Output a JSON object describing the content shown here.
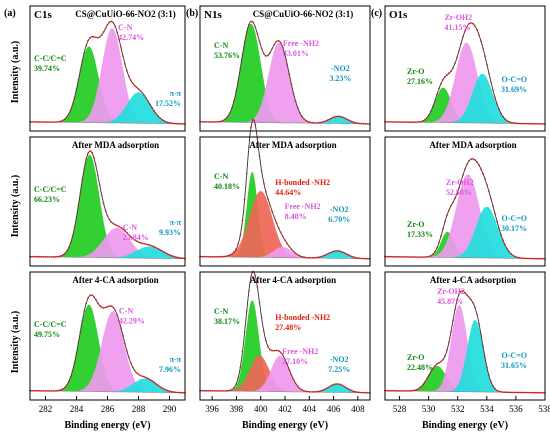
{
  "chart_data": [
    {
      "type": "area",
      "panel_letter": "(a)",
      "element": "C1s",
      "xlabel": "Binding energy (eV)",
      "xlim": [
        281,
        291
      ],
      "x_ticks": [
        "282",
        "284",
        "286",
        "288",
        "290"
      ],
      "ylabel": "Intensity (a.u.)",
      "panels": [
        {
          "title": "CS@CuUiO-66-NO2 (3:1)",
          "peaks": [
            {
              "name": "C-C/C=C",
              "percent": "39.74%",
              "center": 284.8,
              "height": 0.74,
              "width": 0.62,
              "color": "#22cc22"
            },
            {
              "name": "C-N",
              "percent": "42.74%",
              "center": 286.3,
              "height": 0.92,
              "width": 0.66,
              "color": "#ee99ee"
            },
            {
              "name": "π-π",
              "percent": "17.52%",
              "center": 288.0,
              "height": 0.3,
              "width": 0.75,
              "color": "#22dddd"
            }
          ]
        },
        {
          "title": "After MDA adsorption",
          "peaks": [
            {
              "name": "C-C/C=C",
              "percent": "66.23%",
              "center": 284.85,
              "height": 0.96,
              "width": 0.62,
              "color": "#22cc22"
            },
            {
              "name": "C-N",
              "percent": "23.84%",
              "center": 286.6,
              "height": 0.28,
              "width": 0.85,
              "color": "#ee99ee"
            },
            {
              "name": "π-π",
              "percent": "9.93%",
              "center": 288.7,
              "height": 0.11,
              "width": 0.85,
              "color": "#22dddd"
            }
          ]
        },
        {
          "title": "After 4-CA adsorption",
          "peaks": [
            {
              "name": "C-C/C=C",
              "percent": "49.75%",
              "center": 284.8,
              "height": 0.82,
              "width": 0.62,
              "color": "#22cc22"
            },
            {
              "name": "C-N",
              "percent": "42.29%",
              "center": 286.35,
              "height": 0.76,
              "width": 0.72,
              "color": "#ee99ee"
            },
            {
              "name": "π-π",
              "percent": "7.96%",
              "center": 288.4,
              "height": 0.13,
              "width": 0.75,
              "color": "#22dddd"
            }
          ]
        }
      ]
    },
    {
      "type": "area",
      "panel_letter": "(b)",
      "element": "N1s",
      "xlabel": "Binding energy (eV)",
      "xlim": [
        395,
        409
      ],
      "x_ticks": [
        "396",
        "398",
        "400",
        "402",
        "404",
        "406",
        "408"
      ],
      "panels": [
        {
          "title": "CS@CuUiO-66-NO2 (3:1)",
          "peaks": [
            {
              "name": "C-N",
              "percent": "53.76%",
              "center": 399.2,
              "height": 0.96,
              "width": 0.8,
              "color": "#22cc22"
            },
            {
              "name": "Free -NH2",
              "percent": "43.01%",
              "center": 401.5,
              "height": 0.78,
              "width": 0.85,
              "color": "#ee99ee"
            },
            {
              "name": "-NO2",
              "percent": "3.23%",
              "center": 406.4,
              "height": 0.07,
              "width": 0.7,
              "color": "#22dddd"
            }
          ]
        },
        {
          "title": "After MDA adsorption",
          "peaks": [
            {
              "name": "C-N",
              "percent": "40.18%",
              "center": 399.3,
              "height": 0.8,
              "width": 0.45,
              "color": "#22cc22"
            },
            {
              "name": "H-bonded -NH2",
              "percent": "44.64%",
              "center": 400.0,
              "height": 0.62,
              "width": 0.95,
              "color": "#ee6655"
            },
            {
              "name": "Free -NH2",
              "percent": "8.48%",
              "center": 401.8,
              "height": 0.1,
              "width": 0.75,
              "color": "#ee99ee"
            },
            {
              "name": "-NO2",
              "percent": "6.70%",
              "center": 406.3,
              "height": 0.07,
              "width": 0.75,
              "color": "#22dddd"
            }
          ]
        },
        {
          "title": "After 4-CA adsorption",
          "peaks": [
            {
              "name": "C-N",
              "percent": "38.17%",
              "center": 399.3,
              "height": 0.86,
              "width": 0.55,
              "color": "#22cc22"
            },
            {
              "name": "H-bonded -NH2",
              "percent": "27.48%",
              "center": 399.9,
              "height": 0.34,
              "width": 0.8,
              "color": "#ee6655"
            },
            {
              "name": "Free -NH2",
              "percent": "27.10%",
              "center": 401.6,
              "height": 0.34,
              "width": 0.75,
              "color": "#ee99ee"
            },
            {
              "name": "-NO2",
              "percent": "7.25%",
              "center": 406.3,
              "height": 0.08,
              "width": 0.7,
              "color": "#22dddd"
            }
          ]
        }
      ]
    },
    {
      "type": "area",
      "panel_letter": "(c)",
      "element": "O1s",
      "xlabel": "Binding energy (eV)",
      "xlim": [
        527,
        538
      ],
      "x_ticks": [
        "528",
        "530",
        "532",
        "534",
        "536",
        "538"
      ],
      "panels": [
        {
          "title": "",
          "peaks": [
            {
              "name": "Zr-O",
              "percent": "27.16%",
              "center": 531.0,
              "height": 0.34,
              "width": 0.55,
              "color": "#22cc22"
            },
            {
              "name": "Zr-OH2",
              "percent": "41.15%",
              "center": 532.6,
              "height": 0.78,
              "width": 0.75,
              "color": "#ee99ee"
            },
            {
              "name": "O-C=O",
              "percent": "31.69%",
              "center": 533.7,
              "height": 0.48,
              "width": 0.7,
              "color": "#22dddd"
            }
          ]
        },
        {
          "title": "After MDA adsorption",
          "peaks": [
            {
              "name": "Zr-O",
              "percent": "17.33%",
              "center": 531.3,
              "height": 0.24,
              "width": 0.45,
              "color": "#22cc22"
            },
            {
              "name": "Zr-OH2",
              "percent": "52.50%",
              "center": 532.7,
              "height": 0.78,
              "width": 0.8,
              "color": "#ee99ee"
            },
            {
              "name": "O-C=O",
              "percent": "30.17%",
              "center": 534.0,
              "height": 0.48,
              "width": 0.75,
              "color": "#22dddd"
            }
          ]
        },
        {
          "title": "After 4-CA adsorption",
          "peaks": [
            {
              "name": "Zr-O",
              "percent": "22.48%",
              "center": 530.6,
              "height": 0.24,
              "width": 0.6,
              "color": "#22cc22"
            },
            {
              "name": "Zr-OH2",
              "percent": "45.87%",
              "center": 532.1,
              "height": 0.82,
              "width": 0.55,
              "color": "#ee99ee"
            },
            {
              "name": "O-C=O",
              "percent": "31.65%",
              "center": 533.2,
              "height": 0.68,
              "width": 0.55,
              "color": "#22dddd"
            }
          ]
        }
      ]
    }
  ]
}
